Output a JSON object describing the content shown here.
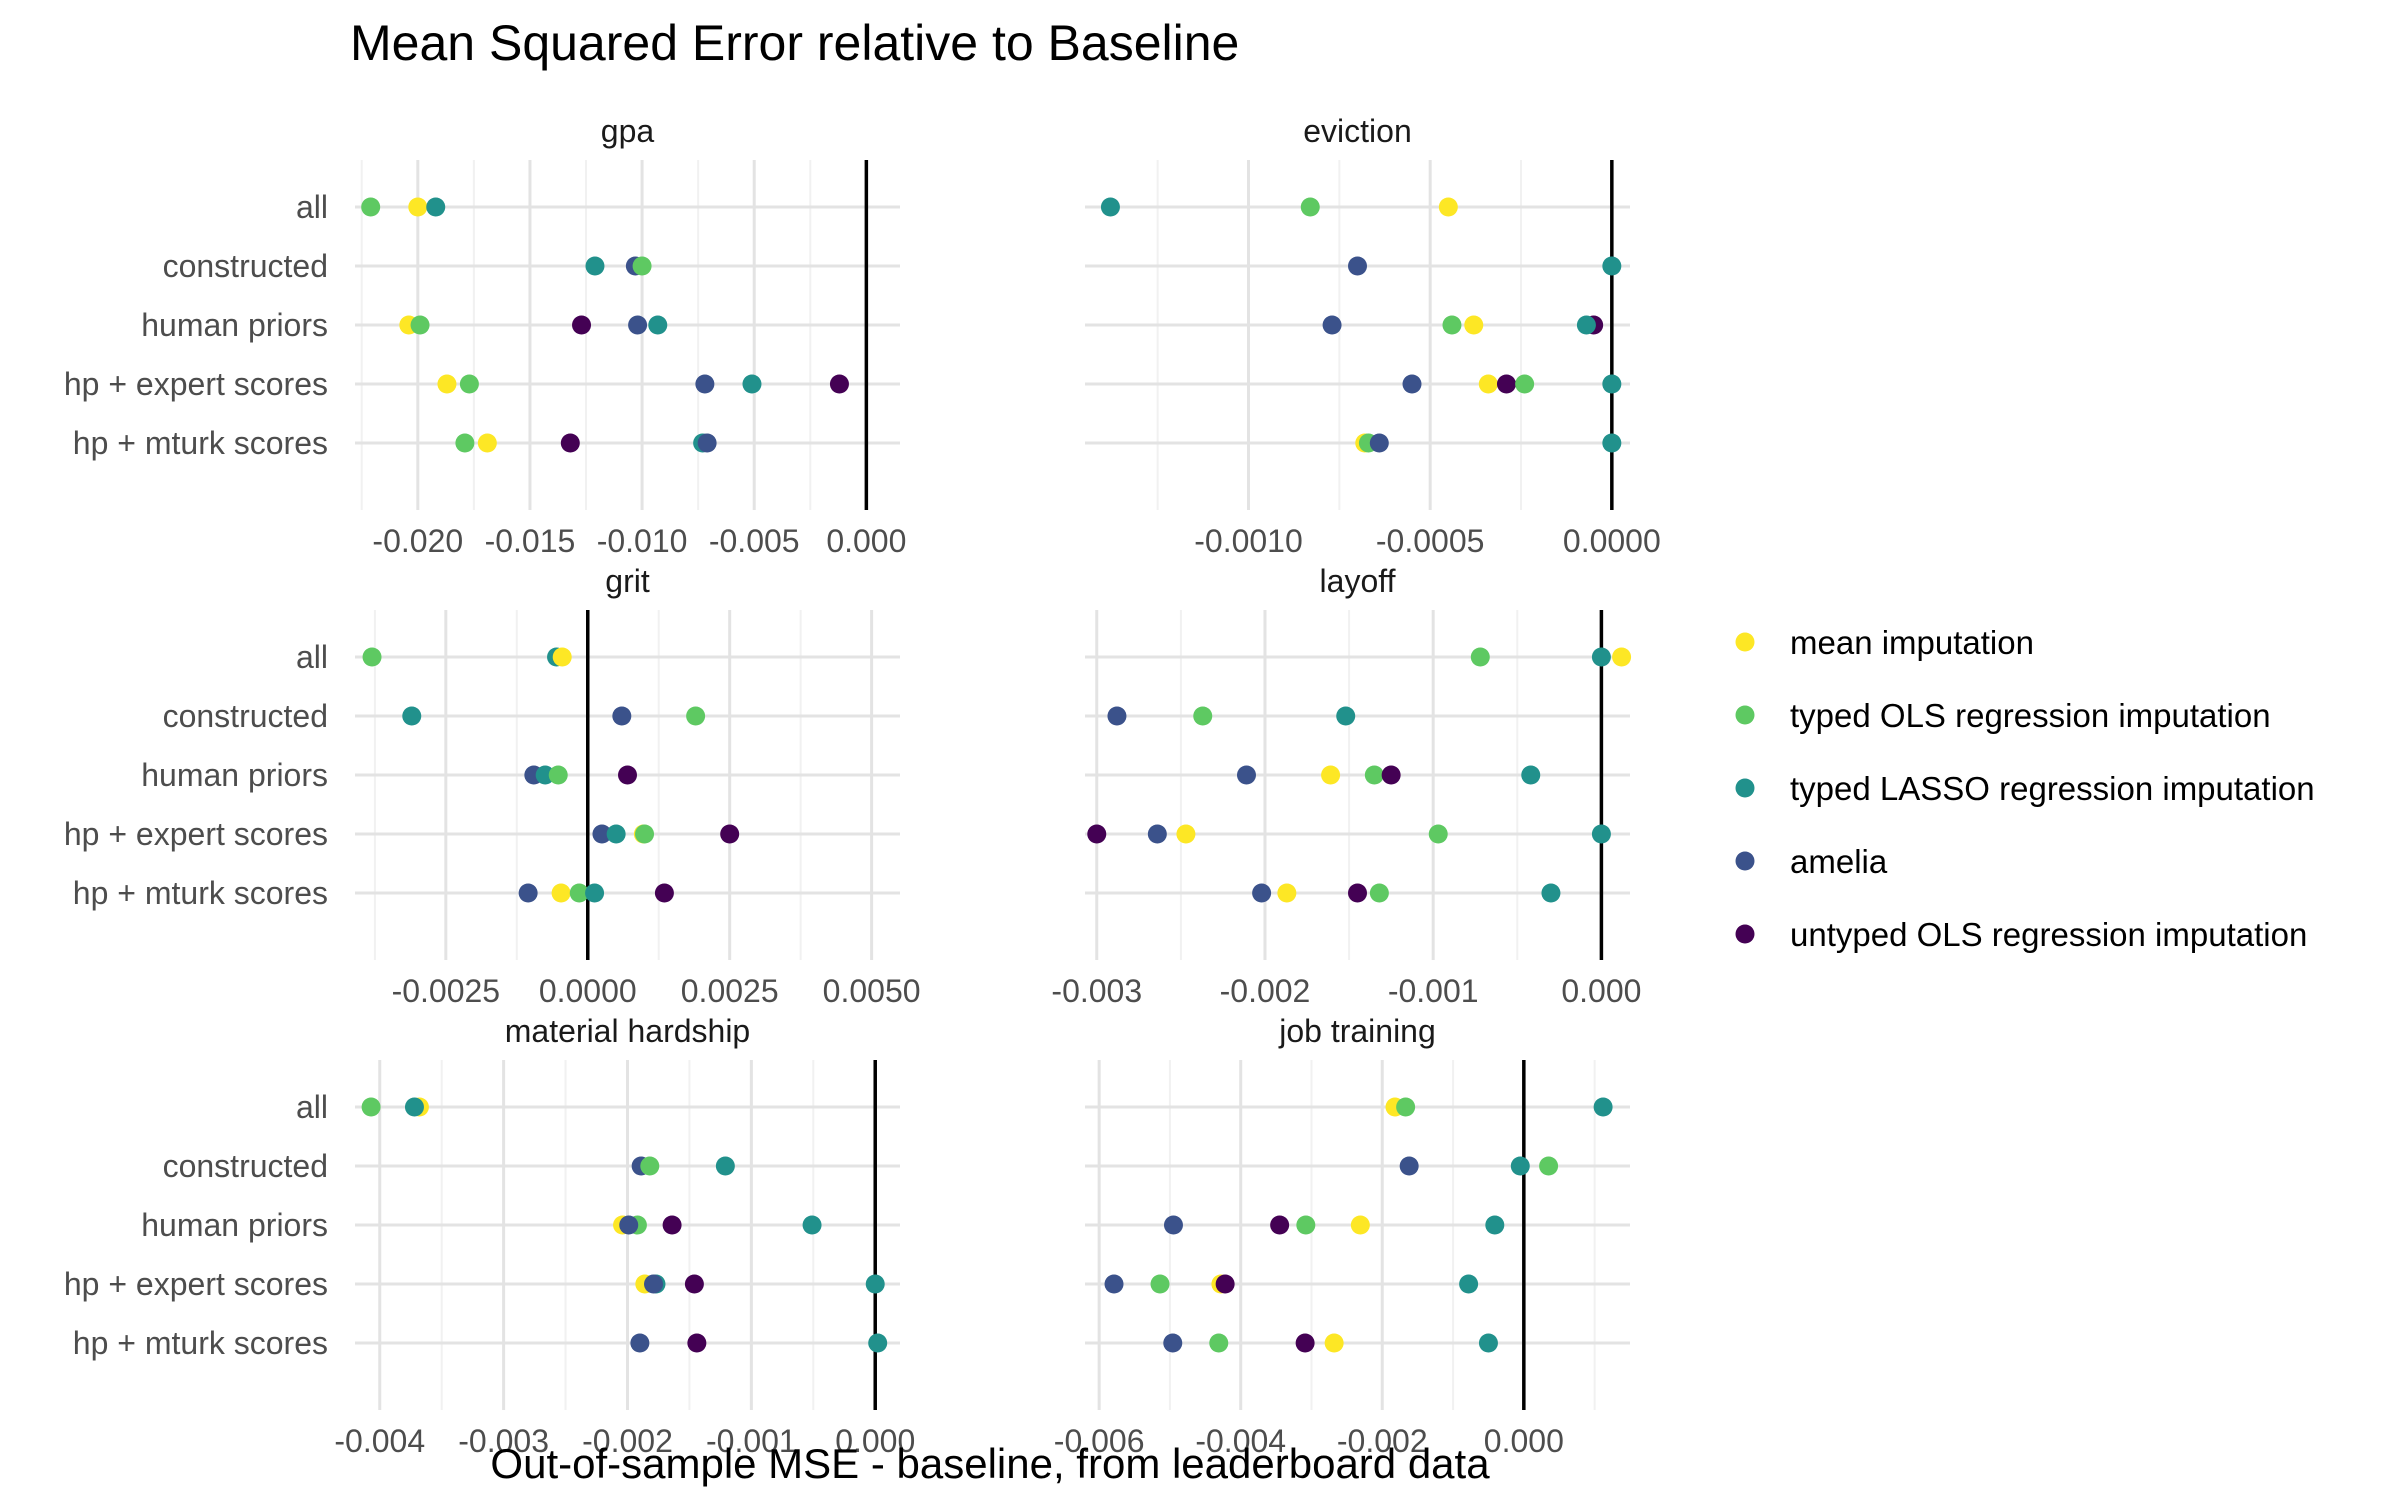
{
  "chart_data": {
    "type": "scatter",
    "title": "Mean Squared Error relative to Baseline",
    "xlabel": "Out-of-sample MSE - baseline, from leaderboard data",
    "ylabel": "",
    "categories": [
      "all",
      "constructed",
      "human priors",
      "hp + expert scores",
      "hp + mturk scores"
    ],
    "legend": {
      "position": "right",
      "entries": [
        {
          "key": "mean",
          "label": "mean imputation",
          "color": "#FDE725"
        },
        {
          "key": "ols",
          "label": "typed OLS regression imputation",
          "color": "#5EC962"
        },
        {
          "key": "lasso",
          "label": "typed LASSO regression imputation",
          "color": "#21918C"
        },
        {
          "key": "amelia",
          "label": "amelia",
          "color": "#3B528B"
        },
        {
          "key": "untyped",
          "label": "untyped OLS regression imputation",
          "color": "#440154"
        }
      ]
    },
    "facets": [
      {
        "name": "gpa",
        "xlim": [
          -0.0228,
          0.0015
        ],
        "ticks": [
          {
            "v": -0.02,
            "label": "-0.020"
          },
          {
            "v": -0.015,
            "label": "-0.015"
          },
          {
            "v": -0.01,
            "label": "-0.010"
          },
          {
            "v": -0.005,
            "label": "-0.005"
          },
          {
            "v": 0.0,
            "label": "0.000"
          }
        ],
        "minor": [
          -0.0225,
          -0.0175,
          -0.0125,
          -0.0075,
          -0.0025
        ],
        "points": [
          {
            "cat": 0,
            "series": "ols",
            "x": -0.0221
          },
          {
            "cat": 0,
            "series": "mean",
            "x": -0.02
          },
          {
            "cat": 0,
            "series": "lasso",
            "x": -0.0192
          },
          {
            "cat": 1,
            "series": "lasso",
            "x": -0.0121
          },
          {
            "cat": 1,
            "series": "amelia",
            "x": -0.0103
          },
          {
            "cat": 1,
            "series": "ols",
            "x": -0.01
          },
          {
            "cat": 2,
            "series": "mean",
            "x": -0.0204
          },
          {
            "cat": 2,
            "series": "ols",
            "x": -0.0199
          },
          {
            "cat": 2,
            "series": "untyped",
            "x": -0.0127
          },
          {
            "cat": 2,
            "series": "amelia",
            "x": -0.0102
          },
          {
            "cat": 2,
            "series": "lasso",
            "x": -0.0093
          },
          {
            "cat": 3,
            "series": "mean",
            "x": -0.0187
          },
          {
            "cat": 3,
            "series": "ols",
            "x": -0.0177
          },
          {
            "cat": 3,
            "series": "amelia",
            "x": -0.0072
          },
          {
            "cat": 3,
            "series": "lasso",
            "x": -0.0051
          },
          {
            "cat": 3,
            "series": "untyped",
            "x": -0.0012
          },
          {
            "cat": 4,
            "series": "ols",
            "x": -0.0179
          },
          {
            "cat": 4,
            "series": "mean",
            "x": -0.0169
          },
          {
            "cat": 4,
            "series": "untyped",
            "x": -0.0132
          },
          {
            "cat": 4,
            "series": "lasso",
            "x": -0.0073
          },
          {
            "cat": 4,
            "series": "amelia",
            "x": -0.0071
          }
        ]
      },
      {
        "name": "eviction",
        "xlim": [
          -0.00145,
          5e-05
        ],
        "ticks": [
          {
            "v": -0.001,
            "label": "-0.0010"
          },
          {
            "v": -0.0005,
            "label": "-0.0005"
          },
          {
            "v": 0.0,
            "label": "0.0000"
          }
        ],
        "minor": [
          -0.00125,
          -0.00075,
          -0.00025
        ],
        "points": [
          {
            "cat": 0,
            "series": "lasso",
            "x": -0.00138
          },
          {
            "cat": 0,
            "series": "ols",
            "x": -0.00083
          },
          {
            "cat": 0,
            "series": "mean",
            "x": -0.00045
          },
          {
            "cat": 1,
            "series": "amelia",
            "x": -0.0007
          },
          {
            "cat": 1,
            "series": "lasso",
            "x": 0.0
          },
          {
            "cat": 2,
            "series": "amelia",
            "x": -0.00077
          },
          {
            "cat": 2,
            "series": "ols",
            "x": -0.00044
          },
          {
            "cat": 2,
            "series": "mean",
            "x": -0.00038
          },
          {
            "cat": 2,
            "series": "untyped",
            "x": -5e-05
          },
          {
            "cat": 2,
            "series": "lasso",
            "x": -7e-05
          },
          {
            "cat": 3,
            "series": "amelia",
            "x": -0.00055
          },
          {
            "cat": 3,
            "series": "mean",
            "x": -0.00034
          },
          {
            "cat": 3,
            "series": "untyped",
            "x": -0.00029
          },
          {
            "cat": 3,
            "series": "ols",
            "x": -0.00024
          },
          {
            "cat": 3,
            "series": "lasso",
            "x": 0.0
          },
          {
            "cat": 4,
            "series": "mean",
            "x": -0.00068
          },
          {
            "cat": 4,
            "series": "ols",
            "x": -0.00067
          },
          {
            "cat": 4,
            "series": "amelia",
            "x": -0.00064
          },
          {
            "cat": 4,
            "series": "lasso",
            "x": 0.0
          }
        ]
      },
      {
        "name": "grit",
        "xlim": [
          -0.0041,
          0.0055
        ],
        "ticks": [
          {
            "v": -0.0025,
            "label": "-0.0025"
          },
          {
            "v": 0.0,
            "label": "0.0000"
          },
          {
            "v": 0.0025,
            "label": "0.0025"
          },
          {
            "v": 0.005,
            "label": "0.0050"
          }
        ],
        "minor": [
          -0.00375,
          -0.00125,
          0.00125,
          0.00375
        ],
        "points": [
          {
            "cat": 0,
            "series": "ols",
            "x": -0.0038
          },
          {
            "cat": 0,
            "series": "lasso",
            "x": -0.00055
          },
          {
            "cat": 0,
            "series": "mean",
            "x": -0.00045
          },
          {
            "cat": 1,
            "series": "lasso",
            "x": -0.0031
          },
          {
            "cat": 1,
            "series": "amelia",
            "x": 0.0006
          },
          {
            "cat": 1,
            "series": "ols",
            "x": 0.0019
          },
          {
            "cat": 2,
            "series": "amelia",
            "x": -0.00095
          },
          {
            "cat": 2,
            "series": "lasso",
            "x": -0.00075
          },
          {
            "cat": 2,
            "series": "ols",
            "x": -0.00052
          },
          {
            "cat": 2,
            "series": "untyped",
            "x": 0.0007
          },
          {
            "cat": 3,
            "series": "amelia",
            "x": 0.00025
          },
          {
            "cat": 3,
            "series": "lasso",
            "x": 0.0005
          },
          {
            "cat": 3,
            "series": "mean",
            "x": 0.00098
          },
          {
            "cat": 3,
            "series": "ols",
            "x": 0.001
          },
          {
            "cat": 3,
            "series": "untyped",
            "x": 0.0025
          },
          {
            "cat": 4,
            "series": "amelia",
            "x": -0.00105
          },
          {
            "cat": 4,
            "series": "mean",
            "x": -0.00047
          },
          {
            "cat": 4,
            "series": "ols",
            "x": -0.00015
          },
          {
            "cat": 4,
            "series": "lasso",
            "x": 0.00012
          },
          {
            "cat": 4,
            "series": "untyped",
            "x": 0.00135
          }
        ]
      },
      {
        "name": "layoff",
        "xlim": [
          -0.00307,
          0.00017
        ],
        "ticks": [
          {
            "v": -0.003,
            "label": "-0.003"
          },
          {
            "v": -0.002,
            "label": "-0.002"
          },
          {
            "v": -0.001,
            "label": "-0.001"
          },
          {
            "v": 0.0,
            "label": "0.000"
          }
        ],
        "minor": [
          -0.0025,
          -0.0015,
          -0.0005
        ],
        "points": [
          {
            "cat": 0,
            "series": "ols",
            "x": -0.00072
          },
          {
            "cat": 0,
            "series": "lasso",
            "x": 0.0
          },
          {
            "cat": 0,
            "series": "mean",
            "x": 0.00012
          },
          {
            "cat": 1,
            "series": "amelia",
            "x": -0.00288
          },
          {
            "cat": 1,
            "series": "ols",
            "x": -0.00237
          },
          {
            "cat": 1,
            "series": "lasso",
            "x": -0.00152
          },
          {
            "cat": 2,
            "series": "amelia",
            "x": -0.00211
          },
          {
            "cat": 2,
            "series": "mean",
            "x": -0.00161
          },
          {
            "cat": 2,
            "series": "ols",
            "x": -0.00135
          },
          {
            "cat": 2,
            "series": "untyped",
            "x": -0.00125
          },
          {
            "cat": 2,
            "series": "lasso",
            "x": -0.00042
          },
          {
            "cat": 3,
            "series": "untyped",
            "x": -0.003
          },
          {
            "cat": 3,
            "series": "amelia",
            "x": -0.00264
          },
          {
            "cat": 3,
            "series": "mean",
            "x": -0.00247
          },
          {
            "cat": 3,
            "series": "ols",
            "x": -0.00097
          },
          {
            "cat": 3,
            "series": "lasso",
            "x": 0.0
          },
          {
            "cat": 4,
            "series": "amelia",
            "x": -0.00202
          },
          {
            "cat": 4,
            "series": "mean",
            "x": -0.00187
          },
          {
            "cat": 4,
            "series": "untyped",
            "x": -0.00145
          },
          {
            "cat": 4,
            "series": "ols",
            "x": -0.00132
          },
          {
            "cat": 4,
            "series": "lasso",
            "x": -0.0003
          }
        ]
      },
      {
        "name": "material hardship",
        "xlim": [
          -0.0042,
          0.0002
        ],
        "ticks": [
          {
            "v": -0.004,
            "label": "-0.004"
          },
          {
            "v": -0.003,
            "label": "-0.003"
          },
          {
            "v": -0.002,
            "label": "-0.002"
          },
          {
            "v": -0.001,
            "label": "-0.001"
          },
          {
            "v": 0.0,
            "label": "0.000"
          }
        ],
        "minor": [
          -0.0035,
          -0.0025,
          -0.0015,
          -0.0005
        ],
        "points": [
          {
            "cat": 0,
            "series": "ols",
            "x": -0.00407
          },
          {
            "cat": 0,
            "series": "mean",
            "x": -0.00368
          },
          {
            "cat": 0,
            "series": "lasso",
            "x": -0.00372
          },
          {
            "cat": 1,
            "series": "amelia",
            "x": -0.00189
          },
          {
            "cat": 1,
            "series": "ols",
            "x": -0.00182
          },
          {
            "cat": 1,
            "series": "lasso",
            "x": -0.00121
          },
          {
            "cat": 2,
            "series": "mean",
            "x": -0.00204
          },
          {
            "cat": 2,
            "series": "ols",
            "x": -0.00192
          },
          {
            "cat": 2,
            "series": "amelia",
            "x": -0.00199
          },
          {
            "cat": 2,
            "series": "untyped",
            "x": -0.00164
          },
          {
            "cat": 2,
            "series": "lasso",
            "x": -0.00051
          },
          {
            "cat": 3,
            "series": "mean",
            "x": -0.00186
          },
          {
            "cat": 3,
            "series": "lasso",
            "x": -0.00177
          },
          {
            "cat": 3,
            "series": "amelia",
            "x": -0.00179
          },
          {
            "cat": 3,
            "series": "untyped",
            "x": -0.00146
          },
          {
            "cat": 3,
            "series": "lasso",
            "x": 0.0
          },
          {
            "cat": 4,
            "series": "amelia",
            "x": -0.0019
          },
          {
            "cat": 4,
            "series": "untyped",
            "x": -0.00144
          },
          {
            "cat": 4,
            "series": "lasso",
            "x": 2e-05
          }
        ]
      },
      {
        "name": "job training",
        "xlim": [
          -0.0062,
          0.0015
        ],
        "ticks": [
          {
            "v": -0.006,
            "label": "-0.006"
          },
          {
            "v": -0.004,
            "label": "-0.004"
          },
          {
            "v": -0.002,
            "label": "-0.002"
          },
          {
            "v": 0.0,
            "label": "0.000"
          }
        ],
        "minor": [
          -0.005,
          -0.003,
          -0.001,
          0.001
        ],
        "points": [
          {
            "cat": 0,
            "series": "mean",
            "x": -0.00182
          },
          {
            "cat": 0,
            "series": "ols",
            "x": -0.00167
          },
          {
            "cat": 0,
            "series": "lasso",
            "x": 0.00112
          },
          {
            "cat": 1,
            "series": "amelia",
            "x": -0.00162
          },
          {
            "cat": 1,
            "series": "lasso",
            "x": -5e-05
          },
          {
            "cat": 1,
            "series": "ols",
            "x": 0.00035
          },
          {
            "cat": 2,
            "series": "amelia",
            "x": -0.00495
          },
          {
            "cat": 2,
            "series": "untyped",
            "x": -0.00345
          },
          {
            "cat": 2,
            "series": "ols",
            "x": -0.00308
          },
          {
            "cat": 2,
            "series": "mean",
            "x": -0.00231
          },
          {
            "cat": 2,
            "series": "lasso",
            "x": -0.00041
          },
          {
            "cat": 3,
            "series": "amelia",
            "x": -0.00579
          },
          {
            "cat": 3,
            "series": "ols",
            "x": -0.00514
          },
          {
            "cat": 3,
            "series": "mean",
            "x": -0.00428
          },
          {
            "cat": 3,
            "series": "untyped",
            "x": -0.00422
          },
          {
            "cat": 3,
            "series": "lasso",
            "x": -0.00078
          },
          {
            "cat": 4,
            "series": "amelia",
            "x": -0.00496
          },
          {
            "cat": 4,
            "series": "ols",
            "x": -0.00431
          },
          {
            "cat": 4,
            "series": "untyped",
            "x": -0.00309
          },
          {
            "cat": 4,
            "series": "mean",
            "x": -0.00268
          },
          {
            "cat": 4,
            "series": "lasso",
            "x": -0.0005
          }
        ]
      }
    ]
  }
}
